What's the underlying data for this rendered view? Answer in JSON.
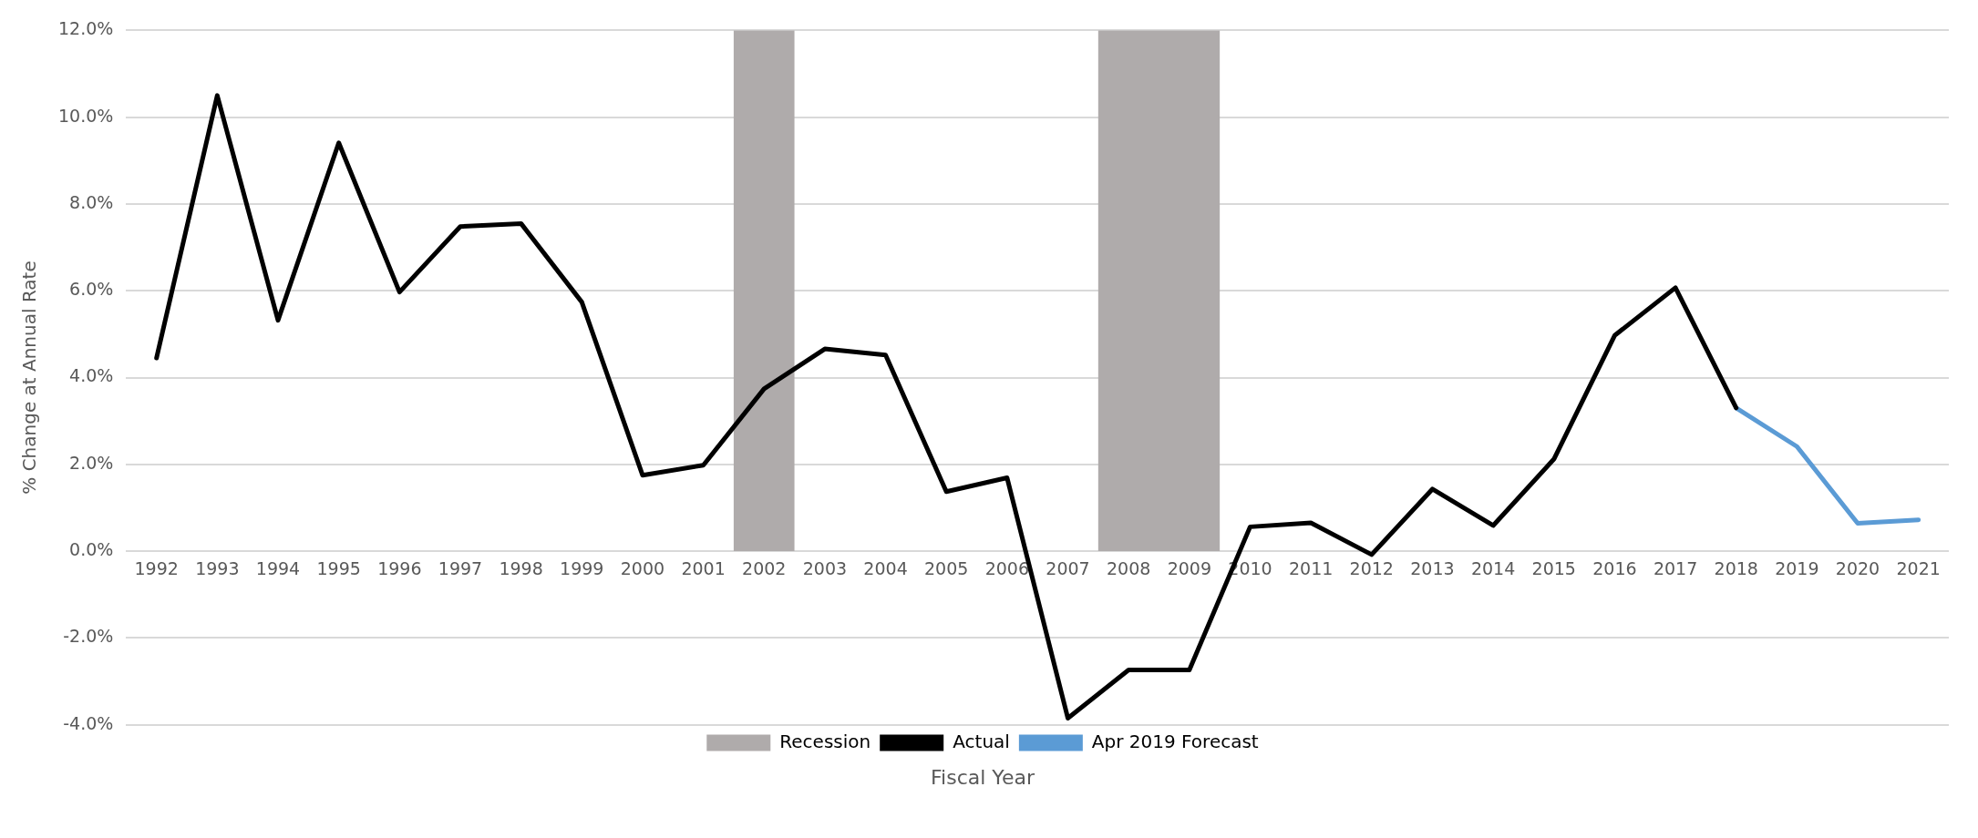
{
  "chart_data": {
    "type": "line",
    "xlabel": "Fiscal Year",
    "ylabel": "% Change at Annual Rate",
    "categories": [
      "1992",
      "1993",
      "1994",
      "1995",
      "1996",
      "1997",
      "1998",
      "1999",
      "2000",
      "2001",
      "2002",
      "2003",
      "2004",
      "2005",
      "2006",
      "2007",
      "2008",
      "2009",
      "2010",
      "2011",
      "2012",
      "2013",
      "2014",
      "2015",
      "2016",
      "2017",
      "2018",
      "2019",
      "2020",
      "2021"
    ],
    "series": [
      {
        "name": "Actual",
        "color": "#000000",
        "values": [
          4.45,
          10.5,
          5.32,
          9.41,
          5.97,
          7.48,
          7.55,
          5.74,
          1.75,
          1.98,
          3.74,
          4.66,
          4.52,
          1.37,
          1.69,
          -3.85,
          -2.74,
          -2.74,
          0.56,
          0.65,
          -0.08,
          1.43,
          0.59,
          2.12,
          4.97,
          6.07,
          3.3,
          null,
          null,
          null
        ]
      },
      {
        "name": "Apr 2019 Forecast",
        "color": "#5b9bd5",
        "values": [
          null,
          null,
          null,
          null,
          null,
          null,
          null,
          null,
          null,
          null,
          null,
          null,
          null,
          null,
          null,
          null,
          null,
          null,
          null,
          null,
          null,
          null,
          null,
          null,
          null,
          null,
          3.3,
          2.41,
          0.64,
          0.72
        ]
      }
    ],
    "bands": [
      {
        "axis": "x",
        "from": "2002",
        "to": "2002",
        "label": "Recession",
        "color": "#afabab"
      },
      {
        "axis": "x",
        "from": "2008",
        "to": "2009",
        "color": "#afabab"
      }
    ],
    "ylim": [
      -4,
      12
    ],
    "yticks": [
      {
        "value": -4,
        "label": "-4.0%"
      },
      {
        "value": -2,
        "label": "-2.0%"
      },
      {
        "value": 0,
        "label": "0.0%"
      },
      {
        "value": 2,
        "label": "2.0%"
      },
      {
        "value": 4,
        "label": "4.0%"
      },
      {
        "value": 6,
        "label": "6.0%"
      },
      {
        "value": 8,
        "label": "8.0%"
      },
      {
        "value": 10,
        "label": "10.0%"
      },
      {
        "value": 12,
        "label": "12.0%"
      }
    ],
    "grid": "y",
    "legend": "bottom",
    "marker": "none",
    "line_style": "solid"
  }
}
